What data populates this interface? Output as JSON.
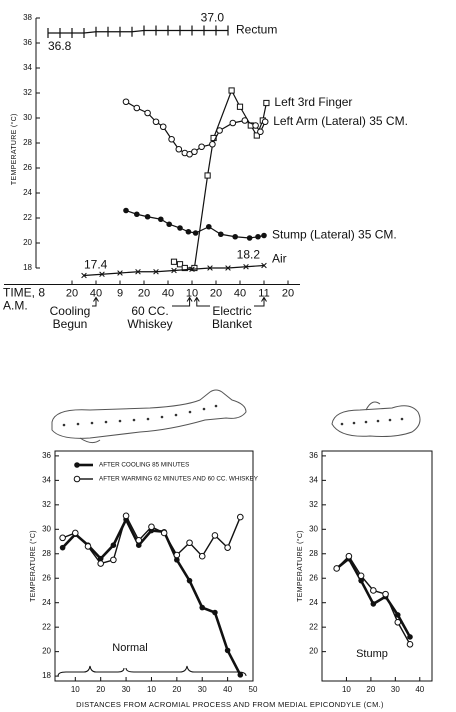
{
  "chart_data": [
    {
      "type": "line",
      "ylabel": "TEMPERATURE (°C)",
      "xlabel": "TIME, 8",
      "xlabel_sub": "A.M.",
      "xlim": [
        -10,
        210
      ],
      "xticks": [
        20,
        40,
        {
          "value": 60,
          "label": "9"
        },
        {
          "value": 80,
          "label": "20"
        },
        {
          "value": 100,
          "label": "40"
        },
        {
          "value": 120,
          "label": "10"
        },
        {
          "value": 140,
          "label": "20"
        },
        {
          "value": 160,
          "label": "40"
        },
        {
          "value": 180,
          "label": "11"
        },
        {
          "value": 200,
          "label": "20"
        }
      ],
      "ylim": [
        17,
        38
      ],
      "yticks": [
        18,
        20,
        22,
        24,
        26,
        28,
        30,
        32,
        34,
        36,
        38
      ],
      "series": [
        {
          "name": "Rectum",
          "color": "#111111",
          "marker": "tick",
          "x": [
            0,
            10,
            20,
            30,
            40,
            50,
            60,
            70,
            80,
            90,
            100,
            110,
            120,
            130,
            140,
            150
          ],
          "values": [
            36.8,
            36.8,
            36.8,
            36.8,
            36.9,
            36.9,
            36.9,
            36.9,
            37.0,
            37.0,
            37.0,
            37.0,
            37.0,
            37.0,
            37.0,
            37.0
          ],
          "value_labels": [
            "36.8",
            null,
            null,
            null,
            null,
            null,
            null,
            null,
            null,
            null,
            null,
            null,
            null,
            null,
            null,
            "37.0"
          ]
        },
        {
          "name": "Left 3rd Finger",
          "color": "#111111",
          "marker": "square",
          "x": [
            105,
            110,
            114,
            122,
            133,
            138,
            153,
            160,
            169,
            174,
            179,
            182
          ],
          "values": [
            18.5,
            18.3,
            18.0,
            18.0,
            25.4,
            28.4,
            32.2,
            30.9,
            29.4,
            28.6,
            29.8,
            31.2
          ]
        },
        {
          "name": "Left Arm (Lateral) 35 CM.",
          "color": "#111111",
          "marker": "circle-open",
          "x": [
            65,
            74,
            83,
            90,
            96,
            103,
            109,
            114,
            118,
            122,
            128,
            137,
            143,
            154,
            164,
            173,
            177,
            181
          ],
          "values": [
            31.3,
            30.8,
            30.4,
            29.7,
            29.3,
            28.3,
            27.5,
            27.2,
            27.1,
            27.3,
            27.7,
            27.9,
            29.0,
            29.6,
            29.8,
            29.4,
            28.9,
            29.7
          ]
        },
        {
          "name": "Stump (Lateral) 35 CM.",
          "color": "#111111",
          "marker": "circle-filled",
          "x": [
            65,
            74,
            83,
            94,
            101,
            110,
            117,
            123,
            134,
            144,
            156,
            168,
            175,
            180
          ],
          "values": [
            22.6,
            22.3,
            22.1,
            21.9,
            21.5,
            21.2,
            20.9,
            20.8,
            21.3,
            20.7,
            20.5,
            20.4,
            20.5,
            20.6
          ]
        },
        {
          "name": "Air",
          "color": "#111111",
          "marker": "x",
          "x": [
            30,
            45,
            60,
            75,
            90,
            105,
            120,
            135,
            150,
            165,
            180
          ],
          "values": [
            17.4,
            17.5,
            17.6,
            17.7,
            17.7,
            17.8,
            17.9,
            18.0,
            18.0,
            18.1,
            18.2
          ],
          "value_labels": [
            "17.4",
            null,
            null,
            null,
            null,
            null,
            null,
            null,
            null,
            null,
            "18.2"
          ]
        }
      ],
      "annotations": [
        {
          "text": [
            "Cooling",
            "Begun"
          ],
          "x": [
            40
          ]
        },
        {
          "text": [
            "60 CC.",
            "Whiskey"
          ],
          "x": [
            118
          ]
        },
        {
          "text": [
            "Electric",
            "Blanket"
          ],
          "x": [
            124,
            180
          ]
        }
      ]
    },
    {
      "type": "line",
      "ylabel": "TEMPERATURE (°C)",
      "xlabel": "DISTANCES FROM ACROMIAL PROCESS AND FROM MEDIAL EPICONDYLE (CM.)",
      "xlim": [
        2,
        80
      ],
      "xticks": [
        10,
        20,
        30,
        {
          "value": 40,
          "label": "10"
        },
        {
          "value": 50,
          "label": "20"
        },
        {
          "value": 60,
          "label": "30"
        },
        {
          "value": 70,
          "label": "40"
        },
        {
          "value": 80,
          "label": "50"
        }
      ],
      "ylim": [
        17.6,
        36.4
      ],
      "yticks": [
        18,
        20,
        22,
        24,
        26,
        28,
        30,
        32,
        34,
        36
      ],
      "legend": "upper left",
      "series": [
        {
          "name": "AFTER COOLING 85 MINUTES",
          "color": "#111111",
          "marker": "circle-filled",
          "x": [
            5,
            10,
            15,
            20,
            25,
            30,
            35,
            40,
            45,
            50,
            55,
            60,
            65,
            70,
            75
          ],
          "values": [
            28.5,
            29.6,
            28.7,
            27.6,
            28.7,
            30.8,
            28.7,
            29.9,
            29.8,
            27.5,
            25.8,
            23.6,
            23.2,
            20.1,
            18.1
          ]
        },
        {
          "name": "AFTER WARMING 62 MINUTES AND 60 CC. WHISKEY",
          "color": "#111111",
          "marker": "circle-open",
          "x": [
            5,
            10,
            15,
            20,
            25,
            30,
            35,
            40,
            45,
            50,
            55,
            60,
            65,
            70,
            75
          ],
          "values": [
            29.3,
            29.7,
            28.6,
            27.2,
            27.5,
            31.1,
            29.1,
            30.2,
            29.7,
            27.9,
            28.9,
            27.8,
            29.5,
            28.5,
            31.0
          ]
        }
      ],
      "annotations": [
        {
          "text": "Normal"
        }
      ]
    },
    {
      "type": "line",
      "ylabel": "TEMPERATURE (°C)",
      "xlim": [
        0,
        45
      ],
      "xticks": [
        10,
        20,
        30,
        40
      ],
      "ylim": [
        17.6,
        36.4
      ],
      "yticks": [
        20,
        22,
        24,
        26,
        28,
        30,
        32,
        34,
        36
      ],
      "series": [
        {
          "color": "#111111",
          "marker": "circle-filled",
          "x": [
            6,
            11,
            16,
            21,
            26,
            31,
            36
          ],
          "values": [
            26.8,
            27.6,
            25.8,
            23.9,
            24.5,
            23.0,
            21.2
          ]
        },
        {
          "color": "#111111",
          "marker": "circle-open",
          "x": [
            6,
            11,
            16,
            21,
            26,
            31,
            36
          ],
          "values": [
            26.8,
            27.8,
            26.2,
            25.0,
            24.7,
            22.4,
            20.6
          ]
        }
      ],
      "annotations": [
        {
          "text": "Stump"
        }
      ]
    }
  ]
}
